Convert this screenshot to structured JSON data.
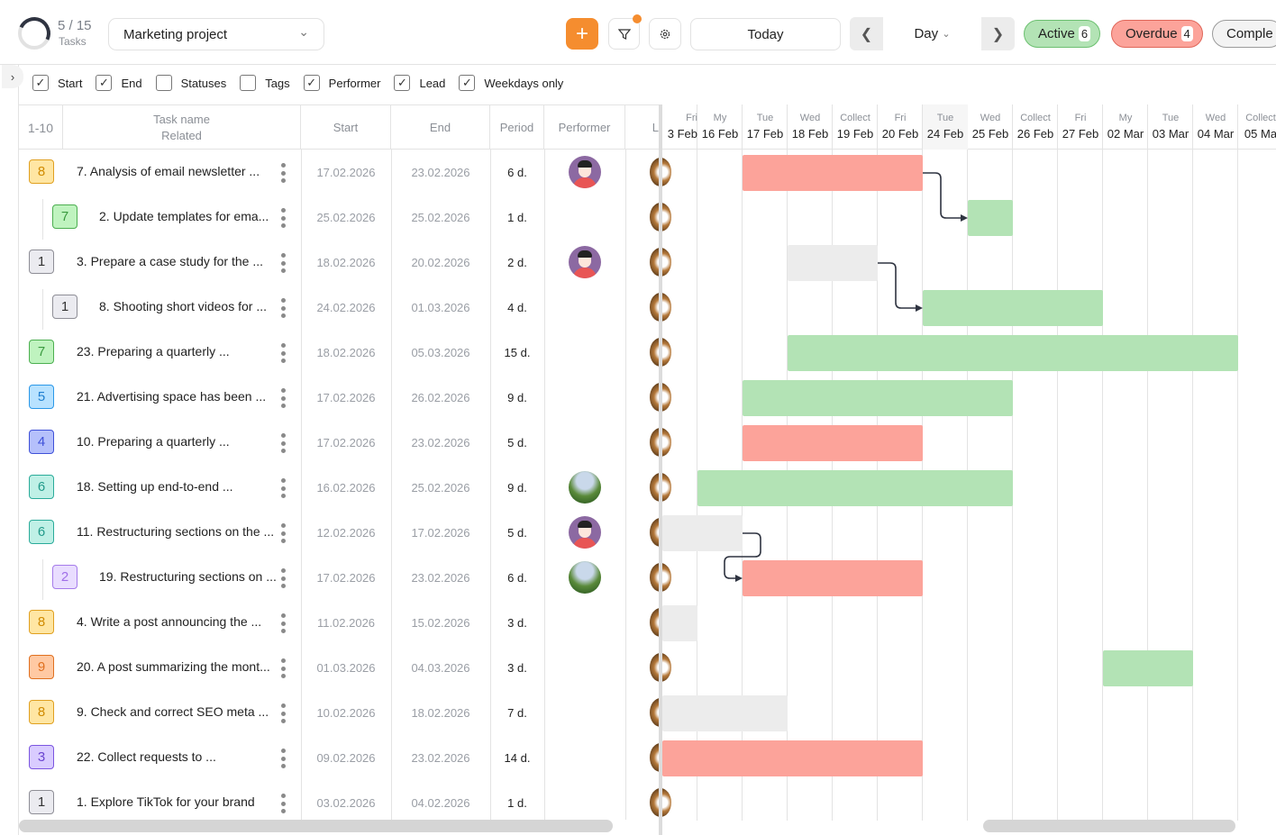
{
  "header": {
    "task_count": "5 / 15",
    "task_count_label": "Tasks",
    "task_progress": 0.333,
    "project": "Marketing project",
    "add_icon": "plus-icon",
    "filter_icon": "filter-icon",
    "settings_icon": "gear-icon",
    "today_label": "Today",
    "view_mode": "Day",
    "status_pills": [
      {
        "label": "Active",
        "count": "6",
        "bg": "#b3e3b5",
        "border": "#6cc070"
      },
      {
        "label": "Overdue",
        "count": "4",
        "bg": "#fca39a",
        "border": "#e0675a"
      },
      {
        "label": "Comple",
        "count": "",
        "bg": "#f3f3f3",
        "border": "#9a9a9a"
      }
    ]
  },
  "options": [
    {
      "label": "Start",
      "checked": true
    },
    {
      "label": "End",
      "checked": true
    },
    {
      "label": "Statuses",
      "checked": false
    },
    {
      "label": "Tags",
      "checked": false
    },
    {
      "label": "Performer",
      "checked": true
    },
    {
      "label": "Lead",
      "checked": true
    },
    {
      "label": "Weekdays only",
      "checked": true
    }
  ],
  "table": {
    "range": "1-10",
    "col_task": "Task name",
    "col_related": "Related",
    "col_start": "Start",
    "col_end": "End",
    "col_period": "Period",
    "col_performer": "Performer",
    "col_lead": "L"
  },
  "badge_colors": {
    "1": [
      "#ebebf0",
      "#8e8e96",
      "#333"
    ],
    "2": [
      "#e9ddff",
      "#a57bea",
      "#a06ee8"
    ],
    "3": [
      "#d9ccff",
      "#7b55e0",
      "#6a44d0"
    ],
    "4": [
      "#b5c0fb",
      "#3f51d8",
      "#3f51d8"
    ],
    "5": [
      "#b8e2ff",
      "#2b98e8",
      "#1f7fd0"
    ],
    "6": [
      "#bff0e6",
      "#2bab9a",
      "#229a8a"
    ],
    "7": [
      "#bff3bf",
      "#4caf50",
      "#3a9a3e"
    ],
    "8": [
      "#ffe6a3",
      "#e0a020",
      "#d08a00"
    ],
    "9": [
      "#ffc9a3",
      "#e07020",
      "#e07020"
    ]
  },
  "status_colors": {
    "overdue": "#fca39a",
    "active": "#b3e3b5",
    "pending": "#ececec"
  },
  "tasks": [
    {
      "badge": "8",
      "name": "7. Analysis of email newsletter ...",
      "start": "17.02.2026",
      "end": "23.02.2026",
      "period": "6 d.",
      "performer": "person",
      "sub": false,
      "bar": {
        "from": "17 Feb",
        "to": "20 Feb",
        "status": "overdue"
      }
    },
    {
      "badge": "7",
      "name": "2. Update templates for ema...",
      "start": "25.02.2026",
      "end": "25.02.2026",
      "period": "1 d.",
      "performer": "",
      "sub": true,
      "bar": {
        "from": "25 Feb",
        "to": "25 Feb",
        "status": "active"
      },
      "depends_on": 0
    },
    {
      "badge": "1",
      "name": "3. Prepare a case study for the ...",
      "start": "18.02.2026",
      "end": "20.02.2026",
      "period": "2 d.",
      "performer": "person",
      "sub": false,
      "bar": {
        "from": "18 Feb",
        "to": "19 Feb",
        "status": "pending"
      }
    },
    {
      "badge": "1",
      "name": "8. Shooting short videos for ...",
      "start": "24.02.2026",
      "end": "01.03.2026",
      "period": "4 d.",
      "performer": "",
      "sub": true,
      "bar": {
        "from": "24 Feb",
        "to": "27 Feb",
        "status": "active"
      },
      "depends_on": 2
    },
    {
      "badge": "7",
      "name": "23. Preparing a quarterly ...",
      "start": "18.02.2026",
      "end": "05.03.2026",
      "period": "15 d.",
      "performer": "",
      "sub": false,
      "bar": {
        "from": "18 Feb",
        "to": "04 Mar",
        "status": "active"
      }
    },
    {
      "badge": "5",
      "name": "21. Advertising space has been ...",
      "start": "17.02.2026",
      "end": "26.02.2026",
      "period": "9 d.",
      "performer": "",
      "sub": false,
      "bar": {
        "from": "17 Feb",
        "to": "25 Feb",
        "status": "active"
      }
    },
    {
      "badge": "4",
      "name": "10. Preparing a quarterly ...",
      "start": "17.02.2026",
      "end": "23.02.2026",
      "period": "5 d.",
      "performer": "",
      "sub": false,
      "bar": {
        "from": "17 Feb",
        "to": "20 Feb",
        "status": "overdue"
      }
    },
    {
      "badge": "6",
      "name": "18. Setting up end-to-end ...",
      "start": "16.02.2026",
      "end": "25.02.2026",
      "period": "9 d.",
      "performer": "nature",
      "sub": false,
      "bar": {
        "from": "16 Feb",
        "to": "25 Feb",
        "status": "active"
      }
    },
    {
      "badge": "6",
      "name": "11. Restructuring sections on the ...",
      "start": "12.02.2026",
      "end": "17.02.2026",
      "period": "5 d.",
      "performer": "person",
      "sub": false,
      "bar": {
        "from": "3 Feb",
        "to": "16 Feb",
        "status": "pending"
      }
    },
    {
      "badge": "2",
      "name": "19. Restructuring sections on ...",
      "start": "17.02.2026",
      "end": "23.02.2026",
      "period": "6 d.",
      "performer": "nature",
      "sub": true,
      "bar": {
        "from": "17 Feb",
        "to": "20 Feb",
        "status": "overdue"
      },
      "depends_on": 8
    },
    {
      "badge": "8",
      "name": "4. Write a post announcing the ...",
      "start": "11.02.2026",
      "end": "15.02.2026",
      "period": "3 d.",
      "performer": "",
      "sub": false,
      "bar": {
        "from": "3 Feb",
        "to": "3 Feb",
        "status": "pending"
      }
    },
    {
      "badge": "9",
      "name": "20. A post summarizing the mont...",
      "start": "01.03.2026",
      "end": "04.03.2026",
      "period": "3 d.",
      "performer": "",
      "sub": false,
      "bar": {
        "from": "02 Mar",
        "to": "03 Mar",
        "status": "active"
      }
    },
    {
      "badge": "8",
      "name": "9. Check and correct SEO meta ...",
      "start": "10.02.2026",
      "end": "18.02.2026",
      "period": "7 d.",
      "performer": "",
      "sub": false,
      "bar": {
        "from": "3 Feb",
        "to": "17 Feb",
        "status": "pending"
      }
    },
    {
      "badge": "3",
      "name": "22. Collect requests to ...",
      "start": "09.02.2026",
      "end": "23.02.2026",
      "period": "14 d.",
      "performer": "",
      "sub": false,
      "bar": {
        "from": "3 Feb",
        "to": "20 Feb",
        "status": "overdue"
      }
    },
    {
      "badge": "1",
      "name": "1. Explore TikTok for your brand",
      "start": "03.02.2026",
      "end": "04.02.2026",
      "period": "1 d.",
      "performer": "",
      "sub": false
    }
  ],
  "timeline": {
    "today": "24 Feb",
    "days": [
      {
        "day": "Fri",
        "date": "3 Feb"
      },
      {
        "day": "My",
        "date": "16 Feb"
      },
      {
        "day": "Tue",
        "date": "17 Feb"
      },
      {
        "day": "Wed",
        "date": "18 Feb"
      },
      {
        "day": "Collect",
        "date": "19 Feb"
      },
      {
        "day": "Fri",
        "date": "20 Feb"
      },
      {
        "day": "Tue",
        "date": "24 Feb"
      },
      {
        "day": "Wed",
        "date": "25 Feb"
      },
      {
        "day": "Collect",
        "date": "26 Feb"
      },
      {
        "day": "Fri",
        "date": "27 Feb"
      },
      {
        "day": "My",
        "date": "02 Mar"
      },
      {
        "day": "Tue",
        "date": "03 Mar"
      },
      {
        "day": "Wed",
        "date": "04 Mar"
      },
      {
        "day": "Collect",
        "date": "05 Ma"
      }
    ]
  }
}
